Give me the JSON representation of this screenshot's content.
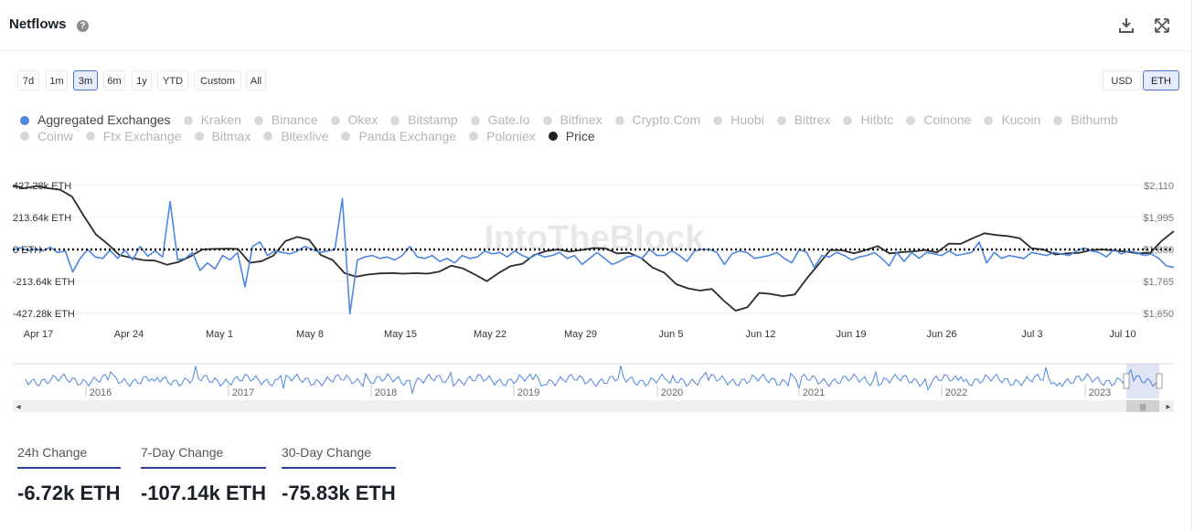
{
  "header": {
    "title": "Netflows",
    "help_icon": "?"
  },
  "ranges": [
    "7d",
    "1m",
    "3m",
    "6m",
    "1y",
    "YTD",
    "Custom",
    "All"
  ],
  "active_range": "3m",
  "currency": [
    "USD",
    "ETH"
  ],
  "active_currency": "ETH",
  "legend": [
    {
      "label": "Aggregated Exchanges",
      "state": "blue"
    },
    {
      "label": "Kraken",
      "state": "off"
    },
    {
      "label": "Binance",
      "state": "off"
    },
    {
      "label": "Okex",
      "state": "off"
    },
    {
      "label": "Bitstamp",
      "state": "off"
    },
    {
      "label": "Gate.Io",
      "state": "off"
    },
    {
      "label": "Bitfinex",
      "state": "off"
    },
    {
      "label": "Crypto.Com",
      "state": "off"
    },
    {
      "label": "Huobi",
      "state": "off"
    },
    {
      "label": "Bittrex",
      "state": "off"
    },
    {
      "label": "Hitbtc",
      "state": "off"
    },
    {
      "label": "Coinone",
      "state": "off"
    },
    {
      "label": "Kucoin",
      "state": "off"
    },
    {
      "label": "Bithumb",
      "state": "off"
    },
    {
      "label": "Coinw",
      "state": "off"
    },
    {
      "label": "Ftx Exchange",
      "state": "off"
    },
    {
      "label": "Bitmax",
      "state": "off"
    },
    {
      "label": "Bitexlive",
      "state": "off"
    },
    {
      "label": "Panda Exchange",
      "state": "off"
    },
    {
      "label": "Poloniex",
      "state": "off"
    },
    {
      "label": "Price",
      "state": "dark"
    }
  ],
  "colors": {
    "netflow": "#4f86e0",
    "price": "#2a2a2a",
    "accent": "#2b3fa8"
  },
  "chart_data": {
    "type": "line",
    "watermark": "IntoTheBlock",
    "x_labels": [
      "Apr 17",
      "Apr 24",
      "May 1",
      "May 8",
      "May 15",
      "May 22",
      "May 29",
      "Jun 5",
      "Jun 12",
      "Jun 19",
      "Jun 26",
      "Jul 3",
      "Jul 10"
    ],
    "left_axis": {
      "ticks": [
        "427.28k ETH",
        "213.64k ETH",
        "0 ETH",
        "-213.64k ETH",
        "-427.28k ETH"
      ],
      "range": [
        -427.28,
        427.28
      ],
      "unit": "k ETH"
    },
    "right_axis": {
      "ticks": [
        "$2,110",
        "$1,995",
        "$1,880",
        "$1,765",
        "$1,650"
      ],
      "range": [
        1650,
        2110
      ]
    },
    "series": [
      {
        "name": "Aggregated Exchanges",
        "axis": "left",
        "values": [
          -5,
          12,
          -8,
          3,
          -10,
          15,
          -20,
          -10,
          -150,
          -60,
          0,
          -50,
          -60,
          -5,
          -60,
          -5,
          -70,
          20,
          -45,
          -10,
          -50,
          320,
          -70,
          -60,
          -20,
          -140,
          -90,
          -130,
          -40,
          -70,
          -20,
          -250,
          20,
          50,
          -40,
          -10,
          -20,
          -30,
          -10,
          20,
          0,
          -20,
          -10,
          0,
          340,
          -430,
          -70,
          -50,
          -40,
          -60,
          -50,
          -70,
          -40,
          20,
          -50,
          -60,
          -40,
          -80,
          -60,
          -90,
          -40,
          -60,
          -50,
          -10,
          -30,
          -20,
          -50,
          -10,
          -40,
          -60,
          -30,
          -50,
          -40,
          -20,
          -60,
          -40,
          -100,
          -60,
          -20,
          -60,
          -100,
          -80,
          -50,
          -40,
          -60,
          0,
          -40,
          -40,
          -10,
          -40,
          -80,
          -10,
          0,
          0,
          -20,
          -100,
          -30,
          -10,
          -20,
          -60,
          -50,
          -40,
          -20,
          -60,
          -90,
          0,
          -20,
          -120,
          -40,
          -50,
          -20,
          -40,
          -70,
          -50,
          -40,
          -20,
          -60,
          -110,
          -20,
          -80,
          -20,
          -60,
          -20,
          -30,
          -40,
          -10,
          -40,
          -30,
          -20,
          50,
          -90,
          -20,
          -60,
          -40,
          -50,
          -60,
          -20,
          -30,
          -40,
          -20,
          -30,
          -40,
          -10,
          10,
          -10,
          -20,
          -50,
          0,
          -30,
          -10,
          -20,
          -40,
          -30,
          -60,
          -110,
          -120
        ]
      },
      {
        "name": "Price",
        "axis": "right",
        "values": [
          2110,
          2100,
          2108,
          2100,
          2095,
          2070,
          2000,
          1935,
          1900,
          1860,
          1850,
          1842,
          1840,
          1825,
          1835,
          1855,
          1880,
          1882,
          1883,
          1882,
          1832,
          1838,
          1858,
          1910,
          1925,
          1915,
          1860,
          1842,
          1795,
          1782,
          1790,
          1794,
          1795,
          1793,
          1795,
          1793,
          1800,
          1822,
          1812,
          1790,
          1766,
          1795,
          1820,
          1828,
          1860,
          1874,
          1880,
          1872,
          1878,
          1885,
          1884,
          1866,
          1868,
          1850,
          1815,
          1796,
          1755,
          1740,
          1732,
          1738,
          1696,
          1660,
          1672,
          1724,
          1720,
          1712,
          1718,
          1775,
          1826,
          1878,
          1877,
          1866,
          1878,
          1892,
          1866,
          1870,
          1873,
          1878,
          1869,
          1901,
          1900,
          1920,
          1938,
          1932,
          1928,
          1920,
          1884,
          1880,
          1862,
          1866,
          1868,
          1878,
          1880,
          1876,
          1872,
          1866,
          1868,
          1912,
          1946
        ]
      }
    ]
  },
  "navigator": {
    "years": [
      "2016",
      "2017",
      "2018",
      "2019",
      "2020",
      "2021",
      "2022",
      "2023"
    ],
    "left_arrow": "◂",
    "right_arrow": "▸",
    "grip": "|||"
  },
  "stats": [
    {
      "label": "24h Change",
      "value": "-6.72k ETH"
    },
    {
      "label": "7-Day Change",
      "value": "-107.14k ETH"
    },
    {
      "label": "30-Day Change",
      "value": "-75.83k ETH"
    }
  ]
}
